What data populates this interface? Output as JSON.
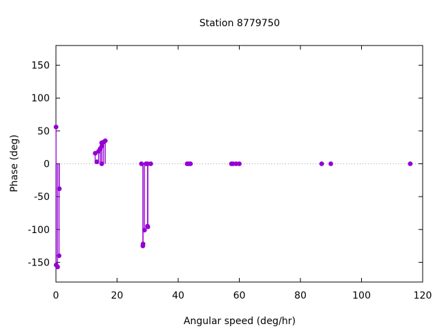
{
  "chart_data": {
    "type": "scatter",
    "style": "impulses-with-points",
    "title": "Station 8779750",
    "xlabel": "Angular speed (deg/hr)",
    "ylabel": "Phase (deg)",
    "xlim": [
      0,
      120
    ],
    "ylim": [
      -180,
      180
    ],
    "xticks": [
      "0",
      "20",
      "40",
      "60",
      "80",
      "100",
      "120"
    ],
    "yticks": [
      "-150",
      "-100",
      "-50",
      "0",
      "50",
      "100",
      "150"
    ],
    "zero_line": true,
    "color": "#9400d3",
    "series": [
      {
        "x": [
          0.04,
          0.08,
          0.54,
          1.02,
          1.1,
          12.85,
          13.4,
          13.94,
          14.5,
          14.96,
          15.0,
          15.04,
          15.59,
          16.14,
          27.97,
          28.44,
          28.51,
          28.98,
          29.46,
          29.96,
          30.0,
          30.08,
          31.02,
          42.93,
          43.48,
          44.03,
          57.42,
          57.97,
          58.98,
          60.0,
          86.95,
          89.94,
          115.94
        ],
        "y": [
          56,
          -154,
          -157,
          -140,
          -38,
          16,
          3,
          19,
          23,
          32,
          0,
          27,
          33,
          35,
          0,
          -125,
          -122,
          -101,
          0,
          -95,
          0,
          -96,
          0,
          0,
          0,
          0,
          0,
          0,
          0,
          0,
          0,
          0,
          0
        ]
      }
    ]
  }
}
